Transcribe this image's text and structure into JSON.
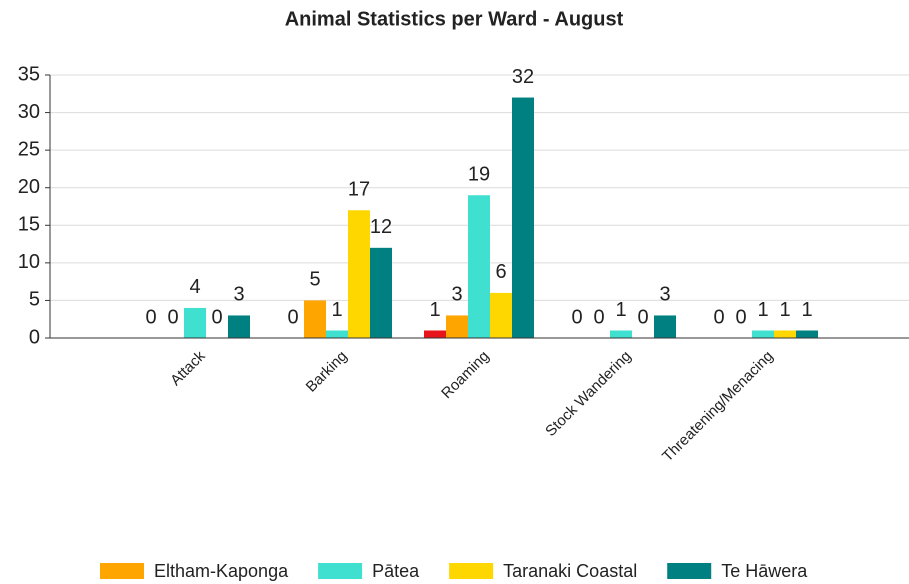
{
  "chart_data": {
    "type": "bar",
    "title": "Animal Statistics per Ward - August",
    "categories": [
      "Attack",
      "Barking",
      "Roaming",
      "Stock Wandering",
      "Threatening/Menacing"
    ],
    "series": [
      {
        "color": "#e8141b",
        "values": [
          0,
          0,
          1,
          0,
          0
        ]
      },
      {
        "name": "Eltham-Kaponga",
        "color": "#ffa500",
        "values": [
          0,
          5,
          3,
          0,
          0
        ]
      },
      {
        "name": "Pātea",
        "color": "#40e0d0",
        "values": [
          4,
          1,
          19,
          1,
          1
        ]
      },
      {
        "name": "Taranaki Coastal",
        "color": "#ffd700",
        "values": [
          0,
          17,
          6,
          0,
          1
        ]
      },
      {
        "name": "Te Hāwera",
        "color": "#008080",
        "values": [
          3,
          12,
          32,
          3,
          1
        ]
      }
    ],
    "ylim": [
      0,
      35
    ],
    "yticks": [
      0,
      5,
      10,
      15,
      20,
      25,
      30,
      35
    ],
    "grid": true,
    "legend": "bottom"
  }
}
